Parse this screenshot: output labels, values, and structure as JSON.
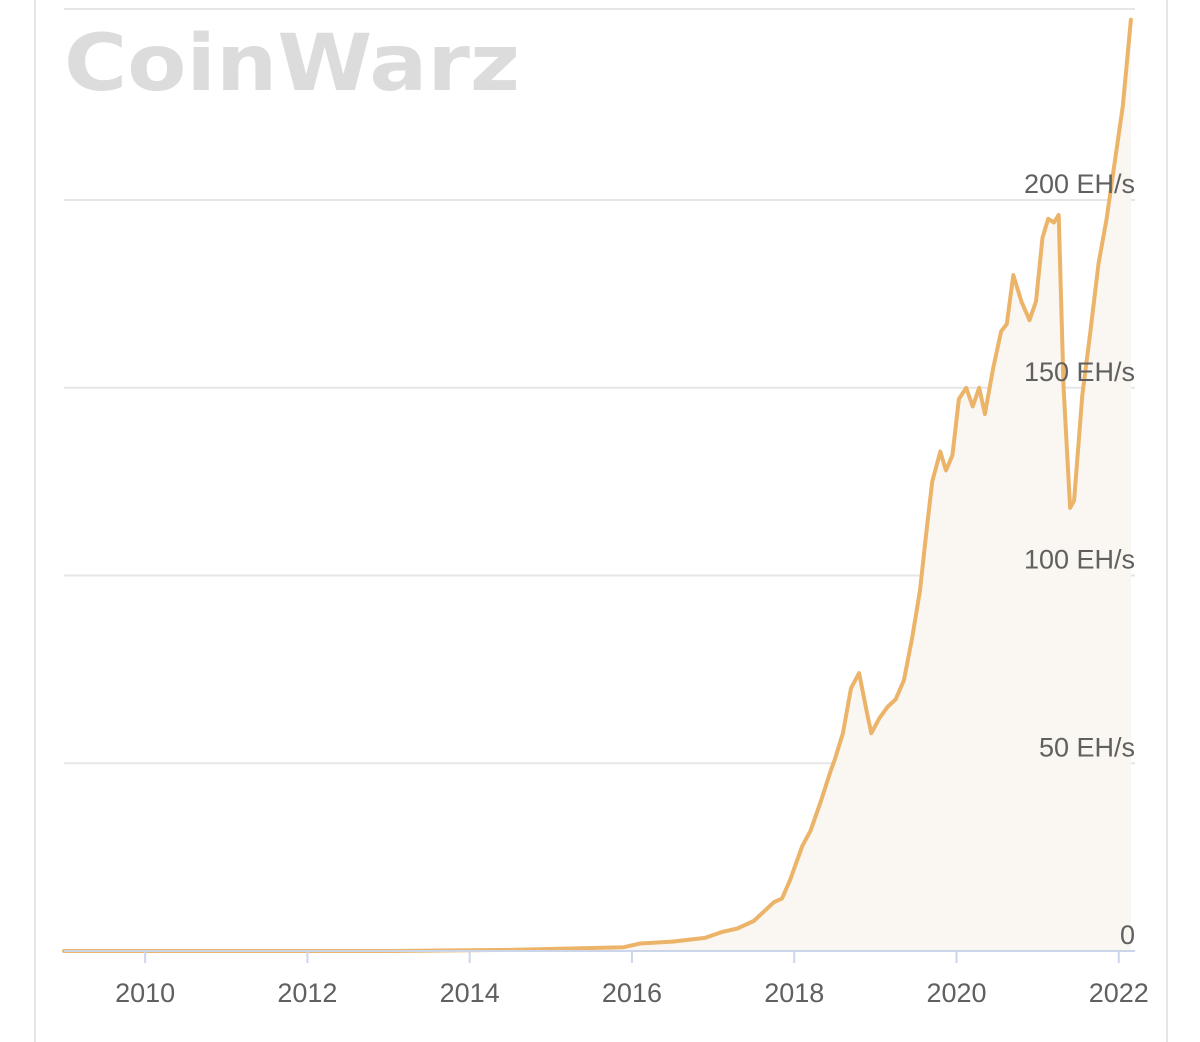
{
  "watermark": {
    "text": "CoinWarz"
  },
  "colors": {
    "line": "#ebb469",
    "area": "#faf6f1",
    "grid": "#e6e6e6",
    "axis": "#ccd6eb",
    "tick_text": "#606060"
  },
  "chart_data": {
    "type": "area",
    "title": "",
    "xlabel": "",
    "ylabel": "",
    "grid": true,
    "xlim": [
      2009.0,
      2022.2
    ],
    "ylim": [
      0,
      200
    ],
    "x_ticks": [
      2010,
      2012,
      2014,
      2016,
      2018,
      2020,
      2022
    ],
    "x_tick_labels": [
      "2010",
      "2012",
      "2014",
      "2016",
      "2018",
      "2020",
      "2022"
    ],
    "y_ticks": [
      0,
      50,
      100,
      150,
      200
    ],
    "y_tick_labels": [
      "0",
      "50 EH/s",
      "100 EH/s",
      "150 EH/s",
      "200 EH/s"
    ],
    "series": [
      {
        "x": [
          2009.0,
          2013.0,
          2014.5,
          2015.5,
          2015.9,
          2016.1,
          2016.5,
          2016.9,
          2017.1,
          2017.3,
          2017.5,
          2017.6,
          2017.75,
          2017.85,
          2017.95,
          2018.1,
          2018.2,
          2018.33,
          2018.45,
          2018.5,
          2018.6,
          2018.7,
          2018.8,
          2018.9,
          2018.95,
          2019.05,
          2019.15,
          2019.25,
          2019.35,
          2019.45,
          2019.55,
          2019.62,
          2019.7,
          2019.8,
          2019.87,
          2019.95,
          2020.03,
          2020.12,
          2020.2,
          2020.28,
          2020.35,
          2020.45,
          2020.55,
          2020.62,
          2020.7,
          2020.8,
          2020.9,
          2020.98,
          2021.06,
          2021.13,
          2021.2,
          2021.26,
          2021.32,
          2021.4,
          2021.45,
          2021.55,
          2021.65,
          2021.75,
          2021.85,
          2021.95,
          2022.05,
          2022.15
        ],
        "values": [
          0,
          0,
          0.3,
          0.8,
          1.0,
          2,
          2.5,
          3.5,
          5,
          6,
          8,
          10,
          13,
          14,
          19,
          28,
          32,
          40,
          48,
          51,
          58,
          70,
          74,
          63,
          58,
          62,
          65,
          67,
          72,
          83,
          96,
          110,
          125,
          133,
          128,
          132,
          147,
          150,
          145,
          150,
          143,
          155,
          165,
          167,
          180,
          173,
          168,
          173,
          190,
          195,
          194,
          196,
          150,
          118,
          120,
          148,
          165,
          183,
          195,
          210,
          225,
          248
        ]
      }
    ]
  }
}
